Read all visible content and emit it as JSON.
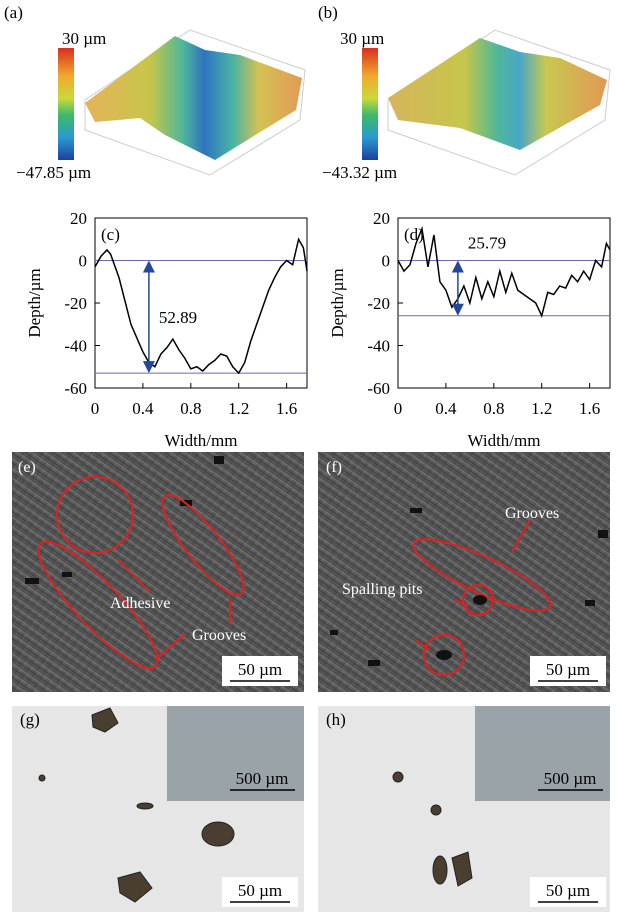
{
  "panels": {
    "a": {
      "label": "(a)",
      "scale_max": "30 µm",
      "scale_min": "−47.85 µm"
    },
    "b": {
      "label": "(b)",
      "scale_max": "30 µm",
      "scale_min": "−43.32 µm"
    },
    "e": {
      "label": "(e)",
      "annotations": [
        "Adhesive",
        "Grooves"
      ],
      "scale_bar": "50 µm"
    },
    "f": {
      "label": "(f)",
      "annotations": [
        "Grooves",
        "Spalling pits"
      ],
      "scale_bar": "50 µm"
    },
    "g": {
      "label": "(g)",
      "inset_scale_bar": "500 µm",
      "scale_bar": "50 µm"
    },
    "h": {
      "label": "(h)",
      "inset_scale_bar": "500 µm",
      "scale_bar": "50 µm"
    }
  },
  "chart_data": [
    {
      "type": "line",
      "label": "(c)",
      "x_label": "Width/mm",
      "y_label": "Depth/µm",
      "xlim": [
        0,
        1.77
      ],
      "xticks": [
        0,
        0.4,
        0.8,
        1.2,
        1.6
      ],
      "ylim": [
        -60,
        20
      ],
      "yticks": [
        20,
        0,
        -20,
        -40,
        -60
      ],
      "x": [
        0,
        0.05,
        0.1,
        0.13,
        0.2,
        0.3,
        0.4,
        0.45,
        0.5,
        0.55,
        0.6,
        0.65,
        0.7,
        0.75,
        0.8,
        0.85,
        0.9,
        0.95,
        1.0,
        1.05,
        1.1,
        1.15,
        1.2,
        1.25,
        1.3,
        1.35,
        1.4,
        1.45,
        1.5,
        1.55,
        1.6,
        1.65,
        1.7,
        1.74,
        1.77
      ],
      "series": [
        {
          "color": "#000000",
          "values": [
            -3,
            2,
            5,
            3,
            -8,
            -30,
            -43,
            -48,
            -50,
            -44,
            -41,
            -37,
            -42,
            -46,
            -51,
            -50,
            -52,
            -49,
            -47,
            -44,
            -45,
            -50,
            -53,
            -48,
            -38,
            -30,
            -22,
            -14,
            -8,
            -3,
            0,
            -2,
            10,
            6,
            -5
          ]
        }
      ],
      "reference_lines": [
        0,
        -53
      ],
      "reference_color": "#6b6bb0",
      "depth": 52.89,
      "arrow_color": "#23479a"
    },
    {
      "type": "line",
      "label": "(d)",
      "x_label": "Width/mm",
      "y_label": "Depth/µm",
      "xlim": [
        0,
        1.77
      ],
      "xticks": [
        0,
        0.4,
        0.8,
        1.2,
        1.6
      ],
      "ylim": [
        -60,
        20
      ],
      "yticks": [
        20,
        0,
        -20,
        -40,
        -60
      ],
      "x": [
        0,
        0.05,
        0.1,
        0.15,
        0.2,
        0.25,
        0.3,
        0.35,
        0.4,
        0.45,
        0.5,
        0.55,
        0.6,
        0.65,
        0.7,
        0.75,
        0.8,
        0.85,
        0.9,
        0.95,
        1.0,
        1.05,
        1.1,
        1.15,
        1.2,
        1.25,
        1.3,
        1.35,
        1.4,
        1.45,
        1.5,
        1.55,
        1.6,
        1.65,
        1.7,
        1.74,
        1.77
      ],
      "series": [
        {
          "color": "#000000",
          "values": [
            0,
            -5,
            -2,
            8,
            15,
            -3,
            12,
            -10,
            -14,
            -22,
            -18,
            -12,
            -20,
            -8,
            -18,
            -10,
            -17,
            -5,
            -15,
            -6,
            -14,
            -16,
            -18,
            -20,
            -26,
            -15,
            -16,
            -12,
            -13,
            -7,
            -10,
            -5,
            -9,
            0,
            -3,
            8,
            5
          ]
        }
      ],
      "reference_lines": [
        0,
        -26
      ],
      "reference_color": "#6b6bb0",
      "depth": 25.79,
      "arrow_color": "#23479a"
    }
  ]
}
